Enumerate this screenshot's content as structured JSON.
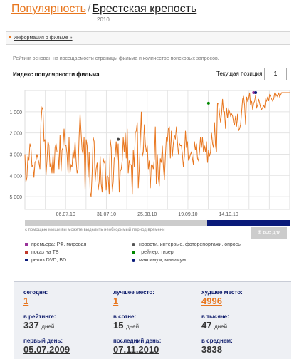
{
  "header": {
    "section": "Популярность",
    "separator": "/",
    "film_title": "Брестская крепость",
    "year": "2010"
  },
  "infobar": {
    "link": "Информация о фильме »"
  },
  "chart_header": {
    "note": "Рейтинг основан на посещаемости страницы фильма и количестве поисковых запросов.",
    "title": "Индекс популярности фильма",
    "current_label": "Текущая позиция:",
    "current_value": "1"
  },
  "chart_data": {
    "type": "line",
    "title": "Индекс популярности фильма",
    "x_ticks": [
      "06.07.10",
      "31.07.10",
      "25.08.10",
      "19.09.10",
      "14.10.10"
    ],
    "y_ticks": [
      "1 000",
      "2 000",
      "3 000",
      "4 000",
      "5 000"
    ],
    "ylim": [
      0,
      5600
    ],
    "y_inverted": true,
    "grid": true,
    "series": [
      {
        "values": [
          3000,
          4300,
          4100,
          3100,
          3300,
          2500,
          2700,
          3600,
          3500,
          4100,
          3400,
          3300,
          3000,
          3200,
          3400,
          3700,
          1500,
          800,
          900,
          2400,
          2300,
          4000,
          3300,
          2400,
          2600,
          3600,
          3400,
          3900,
          3000,
          3900,
          2700,
          2500,
          2900,
          2900,
          3700,
          2100,
          3800,
          2800,
          2700,
          1800,
          2600,
          2600,
          3000,
          3900,
          2200,
          3900,
          3500,
          3600,
          2800,
          3200,
          2400,
          3300,
          3900,
          3700,
          2200,
          1100,
          2000,
          2800,
          3000,
          2200,
          4700,
          2300,
          2600,
          4100,
          2900,
          4800,
          5000,
          3900,
          2200,
          2400,
          4300,
          3700,
          3400,
          4700,
          4300,
          3100,
          4400,
          4800,
          3200,
          3400,
          3300,
          4700,
          4000,
          4100,
          4900,
          2300,
          2700,
          4800,
          4300,
          3200,
          3100,
          2400,
          3300,
          2500,
          4800,
          3800,
          3700,
          3300,
          2200,
          2900,
          2000,
          3200,
          1800,
          3900,
          3300,
          3500,
          3500,
          4900,
          2800,
          3600,
          2000,
          1900,
          1500,
          4600,
          3700,
          2400,
          1000,
          3100,
          2900,
          1600,
          2500,
          2900,
          2600,
          3700,
          3300,
          4600,
          3500,
          3500,
          3700,
          3200,
          1700,
          4400,
          3000,
          4100,
          4500,
          3200,
          3400,
          2600,
          3600,
          4200,
          3100,
          2200,
          2400,
          1800,
          1700,
          3200,
          1900,
          3100,
          2500,
          2100,
          2300,
          1700,
          2400,
          3000,
          2500,
          2600,
          2600,
          3000,
          3600,
          3100,
          1900,
          2700,
          2400,
          3300,
          3200,
          3000,
          2900,
          3200,
          3500,
          2400,
          2800,
          2500,
          3200,
          3300,
          2900,
          2200,
          2700,
          2200,
          2900,
          2600,
          2900,
          2400,
          3400,
          2800,
          3100,
          2900,
          2000,
          2500,
          2700,
          1500,
          2600,
          2900,
          600,
          600,
          1100,
          1500,
          1100,
          400,
          1000,
          1000,
          1800,
          800,
          1300,
          900,
          1000,
          1200,
          1100,
          1200,
          1500,
          1600,
          1200,
          1700,
          1100,
          1900,
          1800,
          1600,
          1000,
          400,
          300,
          700,
          1600,
          300,
          500,
          400,
          100,
          700,
          500,
          900,
          600,
          500,
          200,
          800,
          700,
          400,
          600,
          800,
          900,
          800,
          700,
          800,
          400,
          500,
          300,
          500,
          200,
          300,
          400,
          500,
          400,
          100,
          300,
          200,
          300,
          100,
          300,
          200,
          100,
          100,
          100,
          100,
          100,
          100,
          100,
          100,
          100
        ]
      }
    ],
    "markers": [
      {
        "x_index": 93,
        "y": 2300,
        "color": "#444444"
      },
      {
        "x_index": 183,
        "y": 600,
        "color": "#008800"
      },
      {
        "x_index": 228,
        "y": 100,
        "color": "#993399"
      },
      {
        "x_index": 230,
        "y": 100,
        "color": "#0a1a7a"
      }
    ],
    "colors": {
      "line": "#e8761e",
      "grid": "#e4e4e4"
    }
  },
  "range": {
    "hint": "с помощью мыши вы можете выделить необходимый период времени",
    "all_days": "все дни"
  },
  "legend": [
    {
      "label": "премьера: РФ, мировая",
      "shape": "square",
      "color": "#993399"
    },
    {
      "label": "новости, интервью, фоторепортажи, опросы",
      "shape": "dot",
      "color": "#555555"
    },
    {
      "label": "показ на ТВ",
      "shape": "square",
      "color": "#c0392b"
    },
    {
      "label": "трейлер, тизер",
      "shape": "dot",
      "color": "#008800"
    },
    {
      "label": "релиз DVD, BD",
      "shape": "square",
      "color": "#0a1a7a"
    },
    {
      "label": "максимум, минимум",
      "shape": "dot",
      "color": "#0a1a7a"
    }
  ],
  "stats": {
    "today_label": "сегодня:",
    "today_value": "1",
    "best_label": "лучшее место:",
    "best_value": "1",
    "worst_label": "худшее место:",
    "worst_value": "4996",
    "rating_label": "в рейтинге:",
    "rating_value": "337",
    "rating_unit": "дней",
    "top100_label": "в сотне:",
    "top100_value": "15",
    "top100_unit": "дней",
    "top1000_label": "в тысяче:",
    "top1000_value": "47",
    "top1000_unit": "дней",
    "first_day_label": "первый день:",
    "first_day_value": "05.07.2009",
    "last_day_label": "последний день:",
    "last_day_value": "07.11.2010",
    "avg_label": "в среднем:",
    "avg_value": "3838"
  }
}
